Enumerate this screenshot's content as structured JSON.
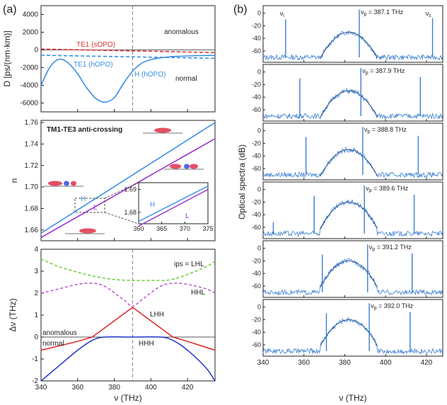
{
  "panel_a_label": "(a)",
  "panel_b_label": "(b)",
  "chart_data": [
    {
      "id": "dispersion",
      "type": "line",
      "xlim": [
        340,
        435
      ],
      "ylim": [
        -7000,
        5000
      ],
      "yticks": [
        4000,
        2000,
        0,
        -2000,
        -4000,
        -6000
      ],
      "ylabel": "D [ps/(nm·km)]",
      "vline": 390,
      "annotations": [
        "anomalous",
        "normal",
        "TE1 (sOPO)",
        "TE1 (hOPO)",
        "H (hOPO)"
      ],
      "series": [
        {
          "name": "H (hOPO)",
          "color": "#3a8ee6",
          "style": "solid",
          "x": [
            340,
            345,
            350,
            355,
            360,
            365,
            370,
            375,
            380,
            385,
            390,
            395,
            400,
            405,
            410,
            415,
            420,
            425,
            430,
            435
          ],
          "y": [
            -4000,
            -1900,
            -1050,
            -1500,
            -2700,
            -4300,
            -5500,
            -5900,
            -5400,
            -3800,
            -2400,
            -1500,
            -1100,
            -900,
            -780,
            -720,
            -680,
            -650,
            -630,
            -620
          ]
        },
        {
          "name": "TE1 (sOPO)",
          "color": "#e03030",
          "style": "dashed",
          "x": [
            340,
            435
          ],
          "y": [
            100,
            -300
          ]
        },
        {
          "name": "TE1 (hOPO)",
          "color": "#3a8ee6",
          "style": "dashed",
          "x": [
            340,
            435
          ],
          "y": [
            -600,
            -950
          ]
        }
      ]
    },
    {
      "id": "index",
      "type": "line",
      "title": "TM1-TE3 anti-crossing",
      "xlim": [
        340,
        435
      ],
      "ylim": [
        1.65,
        1.762
      ],
      "yticks": [
        1.66,
        1.68,
        1.7,
        1.72,
        1.74,
        1.76
      ],
      "ylabel": "n",
      "series": [
        {
          "name": "H",
          "color": "#3a8ee6",
          "x": [
            340,
            435
          ],
          "y": [
            1.657,
            1.76
          ]
        },
        {
          "name": "L",
          "color": "#9933cc",
          "x": [
            340,
            435
          ],
          "y": [
            1.653,
            1.745
          ]
        }
      ],
      "inset": {
        "xlim": [
          360,
          375
        ],
        "xticks": [
          360,
          365,
          370,
          375
        ],
        "ylim": [
          1.675,
          1.693
        ],
        "yticks": [
          1.68,
          1.69
        ],
        "labels": [
          "H",
          "L"
        ],
        "H_x": [
          360,
          375
        ],
        "H_y": [
          1.676,
          1.6915
        ],
        "L_x": [
          360,
          375
        ],
        "L_y": [
          1.674,
          1.69
        ]
      },
      "mode_labels": [
        "H",
        "L"
      ]
    },
    {
      "id": "detuning",
      "type": "line",
      "xlim": [
        340,
        435
      ],
      "ylim": [
        -2,
        4
      ],
      "yticks": [
        4,
        3,
        2,
        1,
        0,
        -1,
        -2
      ],
      "xticks": [
        340,
        360,
        380,
        400,
        420
      ],
      "xlabel": "ν (THz)",
      "ylabel": "Δν (THz)",
      "vline": 390,
      "annotations": [
        "ips = LHL",
        "HHL",
        "LHH",
        "HHH",
        "anomalous",
        "normal"
      ],
      "series": [
        {
          "name": "LHL",
          "color": "#66cc33",
          "style": "dashed",
          "x": [
            340,
            350,
            360,
            370,
            380,
            390,
            400,
            410,
            420,
            430,
            435
          ],
          "y": [
            3.55,
            3.2,
            2.95,
            2.75,
            2.62,
            2.58,
            2.58,
            2.6,
            2.85,
            3.2,
            3.45
          ]
        },
        {
          "name": "HHL",
          "color": "#bb55cc",
          "style": "dashed",
          "x": [
            340,
            350,
            360,
            368,
            375,
            385,
            390,
            395,
            405,
            412,
            420,
            430,
            435
          ],
          "y": [
            2.0,
            2.2,
            2.4,
            2.45,
            2.3,
            1.7,
            1.4,
            1.7,
            2.3,
            2.45,
            2.4,
            2.2,
            2.0
          ]
        },
        {
          "name": "LHH",
          "color": "#e02020",
          "style": "solid",
          "x": [
            340,
            360,
            368,
            390,
            412,
            420,
            435
          ],
          "y": [
            -0.6,
            -0.2,
            0,
            1.35,
            0,
            -0.2,
            -0.6
          ]
        },
        {
          "name": "HHH",
          "color": "#2233cc",
          "style": "solid",
          "x": [
            340,
            350,
            360,
            368,
            375,
            390,
            405,
            412,
            420,
            430,
            435
          ],
          "y": [
            -2.0,
            -1.3,
            -0.6,
            -0.15,
            0,
            0,
            0,
            -0.15,
            -0.6,
            -1.4,
            -2.0
          ]
        }
      ]
    },
    {
      "id": "spectra",
      "type": "line",
      "xlim": [
        340,
        428
      ],
      "xticks": [
        340,
        360,
        380,
        400,
        420
      ],
      "xlabel": "ν (THz)",
      "ylabel": "Optical spectra (dB)",
      "yticks": [
        0,
        -20,
        -40,
        -60
      ],
      "panels": [
        {
          "pump_label": "ν",
          "pump_sub": "p",
          "pump_text": " = 387.1 THz",
          "pump": 387.1,
          "idler": 351,
          "signal": 423,
          "extra": null,
          "idler_label": "ν",
          "idler_sub": "i",
          "signal_label": "ν",
          "signal_sub": "s"
        },
        {
          "pump_label": "ν",
          "pump_sub": "p",
          "pump_text": " = 387.9 THz",
          "pump": 387.9,
          "idler": 358,
          "signal": 417,
          "extra": null
        },
        {
          "pump_label": "ν",
          "pump_sub": "p",
          "pump_text": " = 388.8 THz",
          "pump": 388.8,
          "idler": 361,
          "signal": 416,
          "extra": null
        },
        {
          "pump_label": "ν",
          "pump_sub": "p",
          "pump_text": " = 389.6 THz",
          "pump": 389.6,
          "idler": 365,
          "signal": 414,
          "extra": 345
        },
        {
          "pump_label": "ν",
          "pump_sub": "p",
          "pump_text": " = 391.2 THz",
          "pump": 391.2,
          "idler": 369,
          "signal": 413,
          "extra": null
        },
        {
          "pump_label": "ν",
          "pump_sub": "p",
          "pump_text": " = 392.0 THz",
          "pump": 392.0,
          "idler": 371,
          "signal": 412,
          "extra": null
        }
      ]
    }
  ]
}
